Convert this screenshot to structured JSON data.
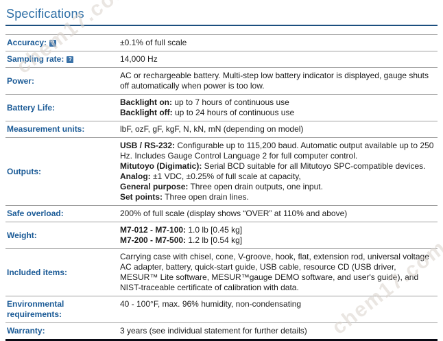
{
  "page": {
    "title": "Specifications"
  },
  "watermark": {
    "text": "chem17.com"
  },
  "colors": {
    "heading": "#2d6ea5",
    "rule": "#1b4f7f",
    "label": "#1a5a96",
    "help_bg": "#3a72a8",
    "divider": "#9e9e9e",
    "bottom_border": "#0a0a14",
    "watermark": "#d9d2cc"
  },
  "table": {
    "help_glyph": "?",
    "rows": [
      {
        "label": "Accuracy:",
        "help": true,
        "lines": [
          {
            "bold": "",
            "text": "±0.1% of full scale"
          }
        ]
      },
      {
        "label": "Sampling rate:",
        "help": true,
        "lines": [
          {
            "bold": "",
            "text": "14,000 Hz"
          }
        ]
      },
      {
        "label": "Power:",
        "help": false,
        "lines": [
          {
            "bold": "",
            "text": "AC or rechargeable battery. Multi-step low battery indicator is displayed, gauge shuts off automatically when power is too low."
          }
        ]
      },
      {
        "label": "Battery Life:",
        "help": false,
        "lines": [
          {
            "bold": "Backlight on:",
            "text": " up to 7 hours of continuous use"
          },
          {
            "bold": "Backlight off:",
            "text": " up to 24 hours of continuous use"
          }
        ]
      },
      {
        "label": "Measurement units:",
        "help": false,
        "lines": [
          {
            "bold": "",
            "text": "lbF, ozF, gF, kgF, N, kN, mN (depending on model)"
          }
        ]
      },
      {
        "label": "Outputs:",
        "help": false,
        "lines": [
          {
            "bold": "USB / RS-232:",
            "text": " Configurable up to 115,200 baud. Automatic output available up to 250 Hz. Includes Gauge Control Language 2 for full computer control."
          },
          {
            "bold": "Mitutoyo (Digimatic):",
            "text": " Serial BCD suitable for all Mitutoyo SPC-compatible devices."
          },
          {
            "bold": "Analog:",
            "text": " ±1 VDC, ±0.25% of full scale at capacity,"
          },
          {
            "bold": "General purpose:",
            "text": " Three open drain outputs, one input."
          },
          {
            "bold": "Set points:",
            "text": " Three open drain lines."
          }
        ]
      },
      {
        "label": "Safe overload:",
        "help": false,
        "lines": [
          {
            "bold": "",
            "text": "200% of full scale (display shows “OVER” at 110% and above)"
          }
        ]
      },
      {
        "label": "Weight:",
        "help": false,
        "lines": [
          {
            "bold": "M7-012 - M7-100:",
            "text": " 1.0 lb [0.45 kg]"
          },
          {
            "bold": "M7-200 - M7-500:",
            "text": " 1.2 lb [0.54 kg]"
          }
        ]
      },
      {
        "label": "Included items:",
        "help": false,
        "lines": [
          {
            "bold": "",
            "text": "Carrying case with chisel, cone, V-groove, hook, flat, extension rod, universal voltage AC adapter, battery, quick-start guide, USB cable, resource CD (USB driver, MESUR™ Lite software, MESUR™gauge DEMO software, and user's guide), and NIST-traceable certificate of calibration with data."
          }
        ]
      },
      {
        "label": "Environmental requirements:",
        "help": false,
        "lines": [
          {
            "bold": "",
            "text": "40 - 100°F, max. 96% humidity, non-condensating"
          }
        ]
      },
      {
        "label": "Warranty:",
        "help": false,
        "lines": [
          {
            "bold": "",
            "text": "3 years (see individual statement for further details)"
          }
        ]
      }
    ]
  }
}
